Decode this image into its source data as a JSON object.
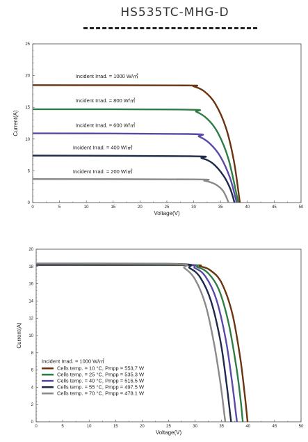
{
  "page_title": "HS535TC-MHG-D",
  "chart_data": [
    {
      "type": "line",
      "xlabel": "Voltage(V)",
      "ylabel": "Current(A)",
      "xlim": [
        0,
        50
      ],
      "ylim": [
        0,
        25
      ],
      "xticks": [
        0,
        5,
        10,
        15,
        20,
        25,
        30,
        35,
        40,
        45,
        50
      ],
      "yticks": [
        0,
        5,
        10,
        15,
        20,
        25
      ],
      "grid": false,
      "series": [
        {
          "name": "Incident Irrad. = 1000 W/㎡",
          "color": "#6b3410",
          "isc": 18.5,
          "voc": 38.6,
          "knee": 29.5,
          "points": [
            [
              0,
              18.5
            ],
            [
              28,
              18.45
            ],
            [
              30,
              18.3
            ],
            [
              32,
              17.5
            ],
            [
              34,
              15.6
            ],
            [
              36,
              11.8
            ],
            [
              37.5,
              6.5
            ],
            [
              38.6,
              0
            ]
          ]
        },
        {
          "name": "Incident Irrad. = 800 W/㎡",
          "color": "#2e7d45",
          "isc": 14.7,
          "voc": 38.3,
          "points": [
            [
              0,
              14.7
            ],
            [
              28.5,
              14.65
            ],
            [
              30.5,
              14.3
            ],
            [
              32.5,
              13.2
            ],
            [
              34.5,
              11.0
            ],
            [
              36.5,
              6.8
            ],
            [
              38.3,
              0
            ]
          ]
        },
        {
          "name": "Incident Irrad. = 600 W/㎡",
          "color": "#5a4aa8",
          "isc": 10.9,
          "voc": 38.0,
          "points": [
            [
              0,
              10.9
            ],
            [
              29,
              10.8
            ],
            [
              31,
              10.4
            ],
            [
              33,
              9.3
            ],
            [
              35,
              7.2
            ],
            [
              36.8,
              3.8
            ],
            [
              38.0,
              0
            ]
          ]
        },
        {
          "name": "Incident Irrad. = 400 W/㎡",
          "color": "#1e2a4a",
          "isc": 7.4,
          "voc": 37.6,
          "points": [
            [
              0,
              7.4
            ],
            [
              29.5,
              7.3
            ],
            [
              31.5,
              7.0
            ],
            [
              33.5,
              6.2
            ],
            [
              35.5,
              4.3
            ],
            [
              36.8,
              2.2
            ],
            [
              37.6,
              0
            ]
          ]
        },
        {
          "name": "Incident Irrad. = 200 W/㎡",
          "color": "#8a8a8a",
          "isc": 3.7,
          "voc": 36.5,
          "points": [
            [
              0,
              3.7
            ],
            [
              30,
              3.65
            ],
            [
              32,
              3.45
            ],
            [
              34,
              2.9
            ],
            [
              35.5,
              1.8
            ],
            [
              36.5,
              0
            ]
          ]
        }
      ],
      "annotations": [
        {
          "text": "Incident Irrad. = 1000 W/㎡",
          "x": 8,
          "y": 19.6
        },
        {
          "text": "Incident Irrad. = 800 W/㎡",
          "x": 8,
          "y": 15.8
        },
        {
          "text": "Incident Irrad. = 600 W/㎡",
          "x": 8,
          "y": 11.9
        },
        {
          "text": "Incident Irrad. = 400 W/㎡",
          "x": 7.5,
          "y": 8.4
        },
        {
          "text": "Incident Irrad. = 200 W/㎡",
          "x": 7.5,
          "y": 4.6
        }
      ]
    },
    {
      "type": "line",
      "xlabel": "Voltage(V)",
      "ylabel": "Current(A)",
      "xlim": [
        0,
        50
      ],
      "ylim": [
        0,
        20
      ],
      "xticks": [
        0,
        5,
        10,
        15,
        20,
        25,
        30,
        35,
        40,
        45,
        50
      ],
      "yticks": [
        0,
        2,
        4,
        6,
        8,
        10,
        12,
        14,
        16,
        18,
        20
      ],
      "grid": false,
      "legend_title": "Incident Irrad. = 1000 W/㎡",
      "legend_position": "bottom-left",
      "series": [
        {
          "name": "Cells temp. = 10 °C,  Pmpp = 553,7 W",
          "color": "#6b3410",
          "points": [
            [
              0,
              18.15
            ],
            [
              28,
              18.15
            ],
            [
              31,
              18.0
            ],
            [
              33,
              17.5
            ],
            [
              35,
              16.1
            ],
            [
              37,
              12.6
            ],
            [
              38.5,
              7.5
            ],
            [
              39.4,
              3.0
            ],
            [
              39.9,
              0
            ]
          ]
        },
        {
          "name": "Cells temp. = 25 °C,  Pmpp = 535.3 W",
          "color": "#2e7d45",
          "points": [
            [
              0,
              18.2
            ],
            [
              27.5,
              18.2
            ],
            [
              30.5,
              17.9
            ],
            [
              32.5,
              17.2
            ],
            [
              34.5,
              15.3
            ],
            [
              36.3,
              11.5
            ],
            [
              37.8,
              6.3
            ],
            [
              38.6,
              2.5
            ],
            [
              39.0,
              0
            ]
          ]
        },
        {
          "name": "Cells temp. = 40 °C,  Pmpp = 516.5 W",
          "color": "#5a4aa8",
          "points": [
            [
              0,
              18.25
            ],
            [
              27,
              18.25
            ],
            [
              30,
              17.8
            ],
            [
              32,
              16.8
            ],
            [
              34,
              14.2
            ],
            [
              35.8,
              9.5
            ],
            [
              37,
              4.5
            ],
            [
              37.7,
              1.0
            ],
            [
              37.9,
              0
            ]
          ]
        },
        {
          "name": "Cells temp. = 55 °C,  Pmpp = 497.5 W",
          "color": "#1e2a4a",
          "points": [
            [
              0,
              18.3
            ],
            [
              26.5,
              18.3
            ],
            [
              29,
              17.8
            ],
            [
              31,
              16.7
            ],
            [
              33,
              14.0
            ],
            [
              34.8,
              9.3
            ],
            [
              35.9,
              4.6
            ],
            [
              36.6,
              1.0
            ],
            [
              36.8,
              0
            ]
          ]
        },
        {
          "name": "Cells temp. = 70 °C,  Pmpp = 478.1 W",
          "color": "#8a8a8a",
          "points": [
            [
              0,
              18.35
            ],
            [
              26,
              18.3
            ],
            [
              28,
              17.8
            ],
            [
              30,
              16.5
            ],
            [
              32,
              13.5
            ],
            [
              33.6,
              9.0
            ],
            [
              34.8,
              4.4
            ],
            [
              35.5,
              1.0
            ],
            [
              35.7,
              0
            ]
          ]
        }
      ]
    }
  ]
}
